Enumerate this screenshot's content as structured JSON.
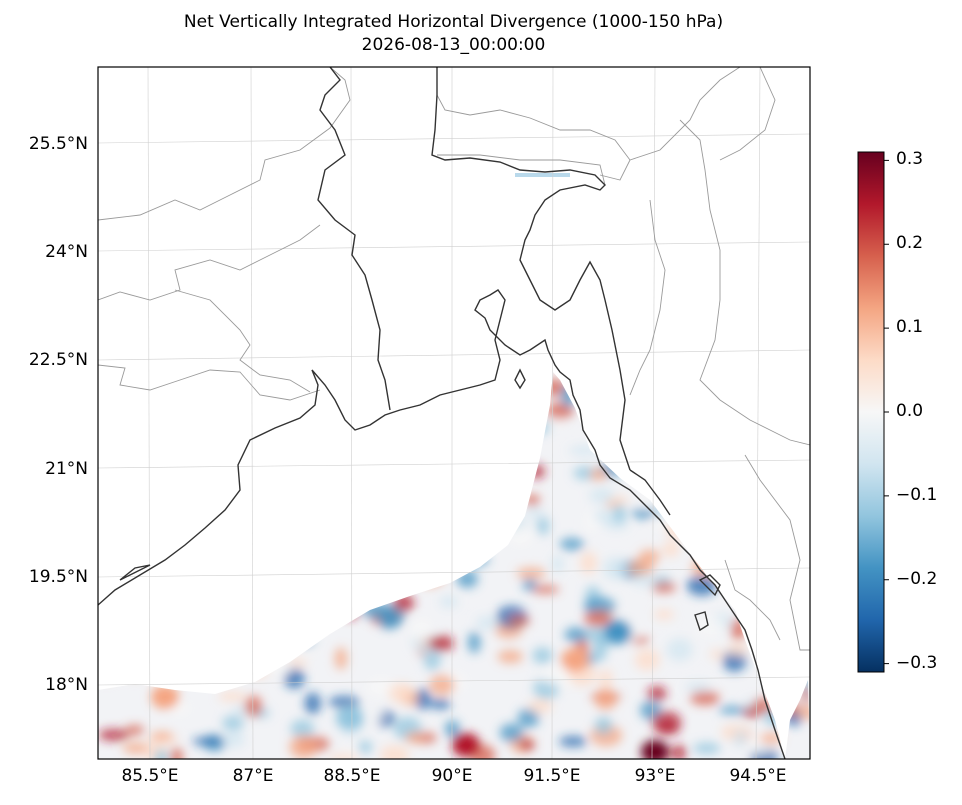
{
  "title": {
    "line1": "Net Vertically Integrated Horizontal Divergence (1000-150 hPa)",
    "line2": "2026-08-13_00:00:00"
  },
  "map": {
    "region": "Bay of Bengal / Bangladesh",
    "lat_labels": [
      "25.5°N",
      "24°N",
      "22.5°N",
      "21°N",
      "19.5°N",
      "18°N"
    ],
    "lon_labels": [
      "85.5°E",
      "87°E",
      "88.5°E",
      "90°E",
      "91.5°E",
      "93°E",
      "94.5°E"
    ],
    "gridlines": true,
    "coastline_color": "#333333",
    "border_color": "#999999"
  },
  "colorbar": {
    "colormap": "RdBu_r",
    "range": [
      -0.31,
      0.31
    ],
    "ticks": [
      "0.3",
      "0.2",
      "0.1",
      "0.0",
      "−0.1",
      "−0.2",
      "−0.3"
    ],
    "tick_values": [
      0.3,
      0.2,
      0.1,
      0.0,
      -0.1,
      -0.2,
      -0.3
    ],
    "colors": [
      "#053061",
      "#2166ac",
      "#4393c3",
      "#92c5de",
      "#d1e5f0",
      "#f7f7f7",
      "#fddbc7",
      "#f4a582",
      "#d6604d",
      "#b2182b",
      "#67001f"
    ]
  }
}
